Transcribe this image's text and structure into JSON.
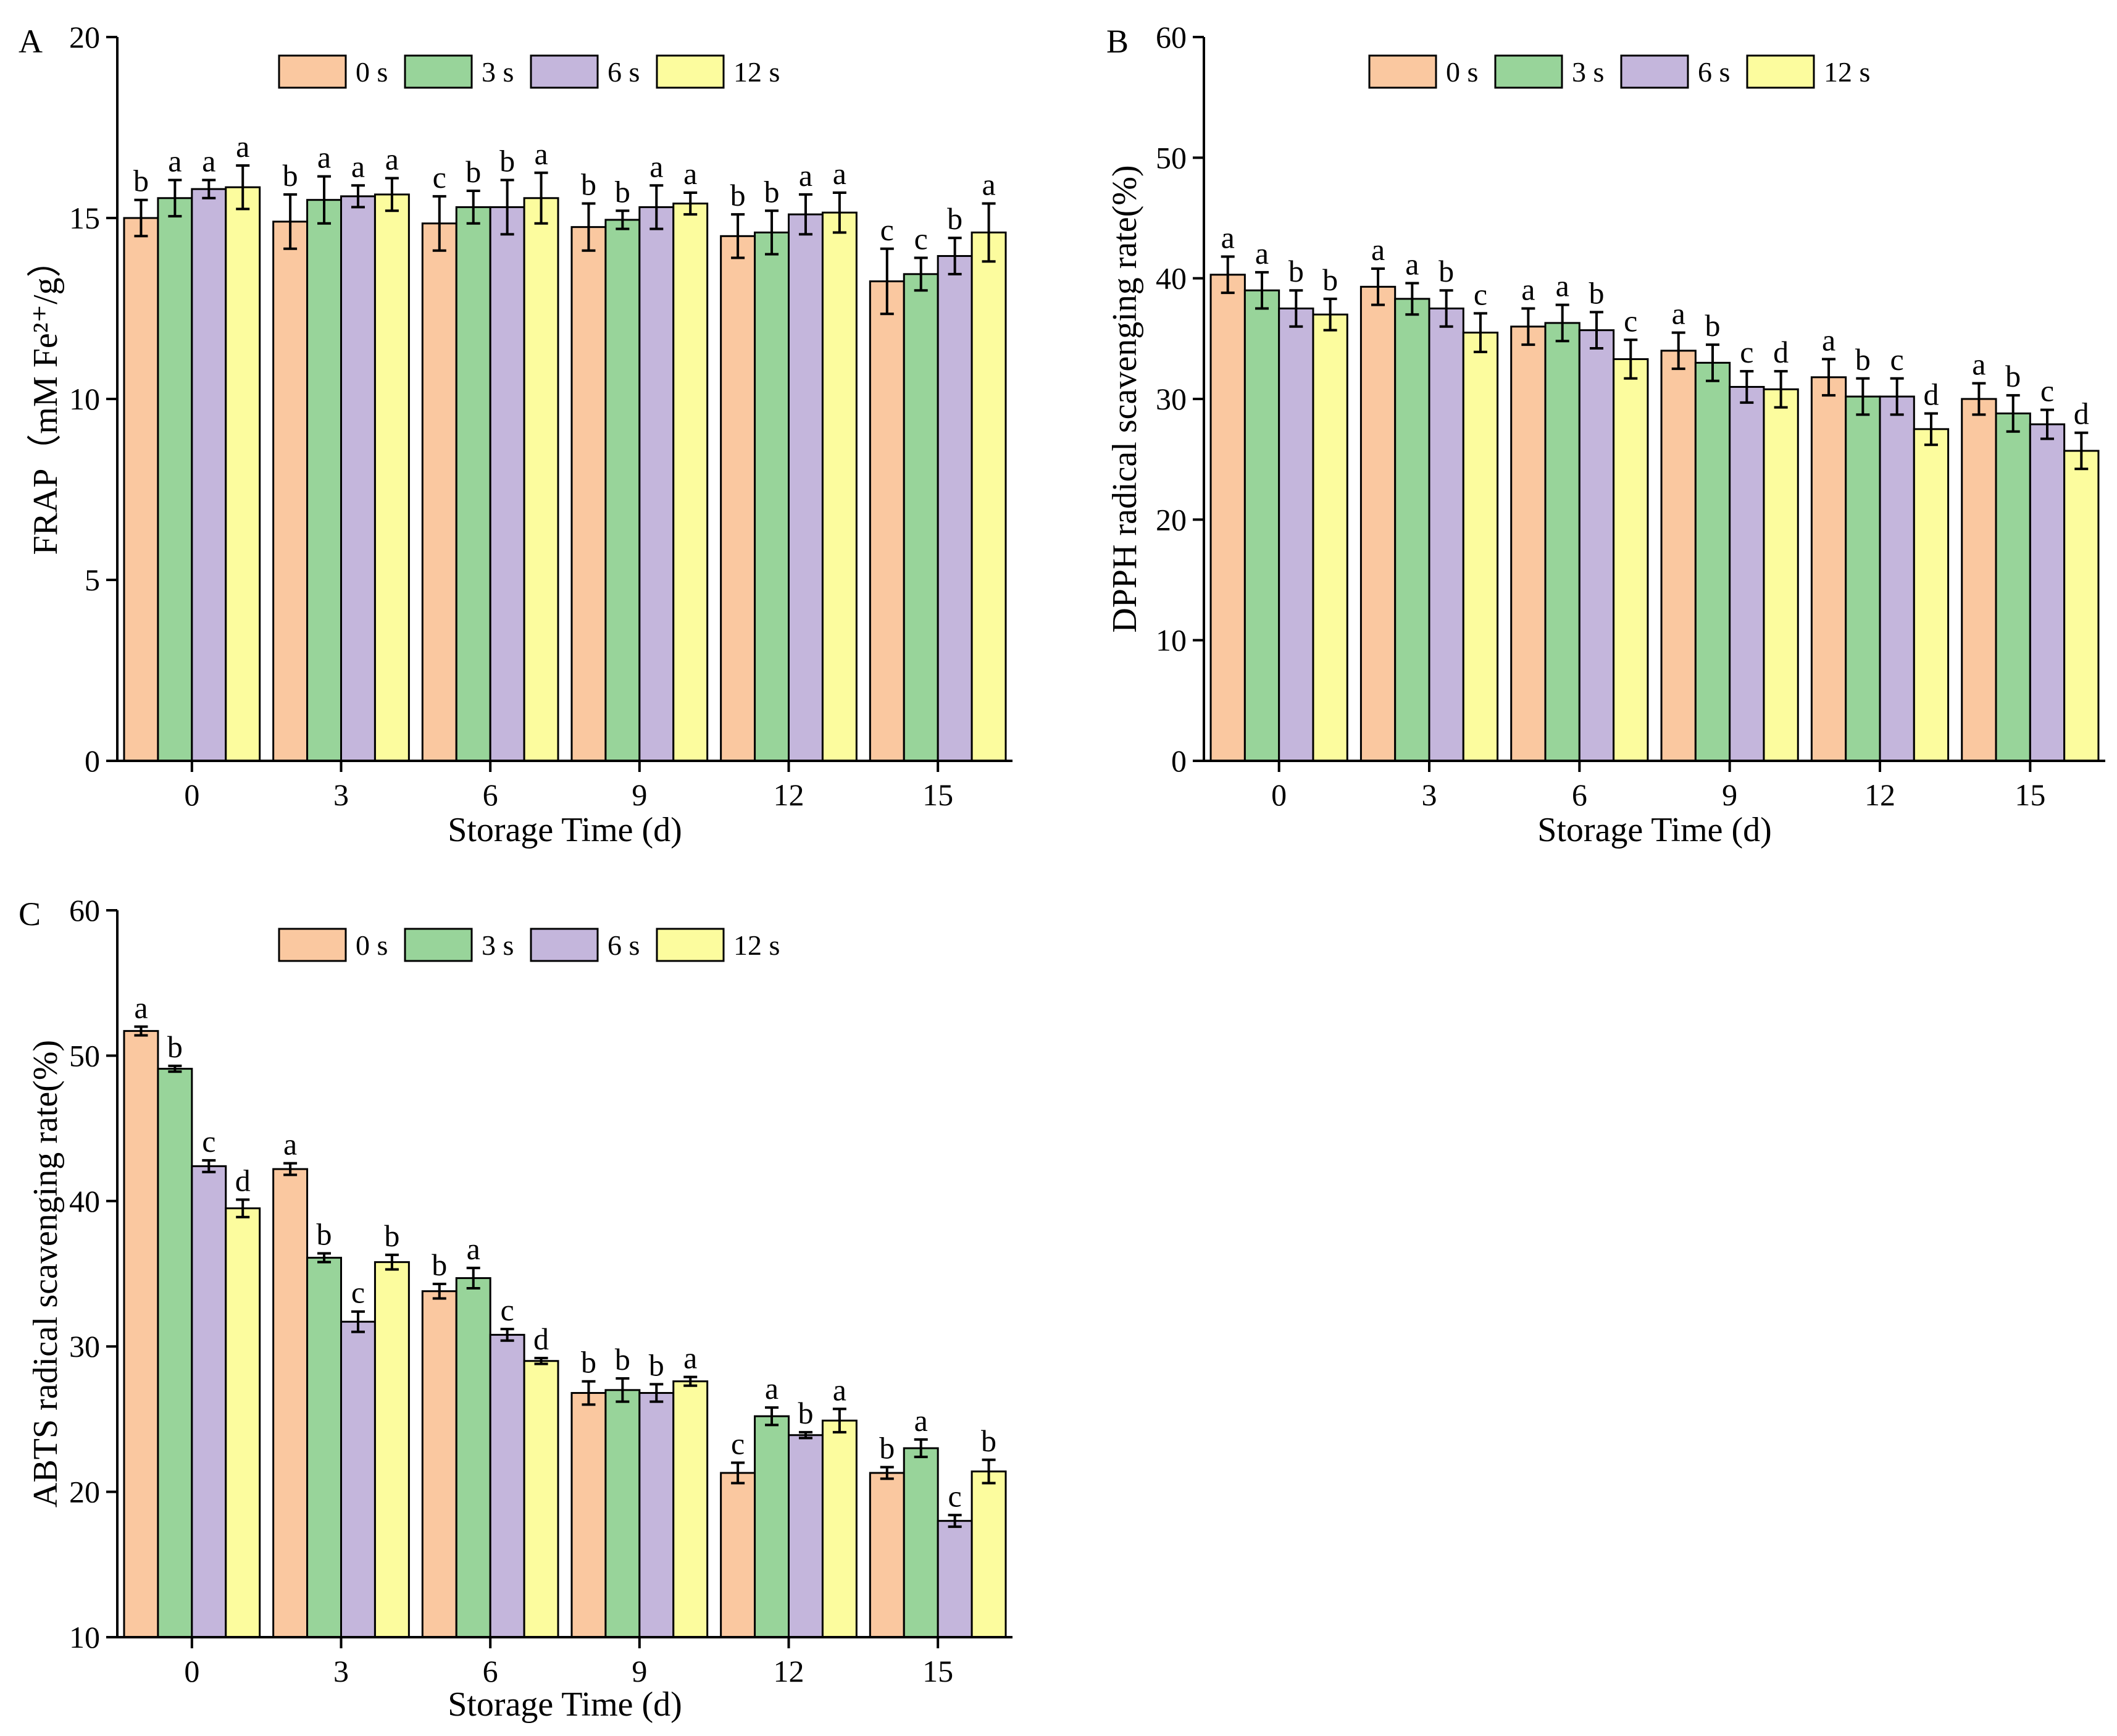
{
  "colors": {
    "s0": "#FAC8A0",
    "s3": "#98D49A",
    "s6": "#C4B6DC",
    "s12": "#FCFC9E"
  },
  "chart_data": [
    {
      "type": "bar",
      "panel": "A",
      "xlabel": "Storage Time (d)",
      "ylabel": "FRAP（mM Fe²⁺/g）",
      "ylim": [
        0,
        20
      ],
      "yticks": [
        0,
        5,
        10,
        15,
        20
      ],
      "legend": "top-center",
      "categories": [
        "0",
        "3",
        "6",
        "9",
        "12",
        "15"
      ],
      "series": [
        {
          "name": "0 s",
          "values": [
            15.0,
            14.9,
            14.85,
            14.75,
            14.5,
            13.25
          ],
          "errors": [
            0.5,
            0.75,
            0.75,
            0.65,
            0.6,
            0.9
          ],
          "letters": [
            "b",
            "b",
            "c",
            "b",
            "b",
            "c"
          ]
        },
        {
          "name": "3 s",
          "values": [
            15.55,
            15.5,
            15.3,
            14.95,
            14.6,
            13.45
          ],
          "errors": [
            0.5,
            0.65,
            0.45,
            0.25,
            0.6,
            0.45
          ],
          "letters": [
            "a",
            "a",
            "b",
            "b",
            "b",
            "c"
          ]
        },
        {
          "name": "6 s",
          "values": [
            15.8,
            15.6,
            15.3,
            15.3,
            15.1,
            13.95
          ],
          "errors": [
            0.25,
            0.3,
            0.75,
            0.6,
            0.55,
            0.5
          ],
          "letters": [
            "a",
            "a",
            "b",
            "a",
            "a",
            "b"
          ]
        },
        {
          "name": "12 s",
          "values": [
            15.85,
            15.65,
            15.55,
            15.4,
            15.15,
            14.6
          ],
          "errors": [
            0.6,
            0.45,
            0.7,
            0.3,
            0.55,
            0.8
          ],
          "letters": [
            "a",
            "a",
            "a",
            "a",
            "a",
            "a"
          ]
        }
      ]
    },
    {
      "type": "bar",
      "panel": "B",
      "xlabel": "Storage Time (d)",
      "ylabel": "DPPH radical scavenging rate(%)",
      "ylim": [
        0,
        60
      ],
      "yticks": [
        0,
        10,
        20,
        30,
        40,
        50,
        60
      ],
      "legend": "top-center",
      "categories": [
        "0",
        "3",
        "6",
        "9",
        "12",
        "15"
      ],
      "series": [
        {
          "name": "0 s",
          "values": [
            40.3,
            39.3,
            36.0,
            34.0,
            31.8,
            30.0
          ],
          "errors": [
            1.5,
            1.5,
            1.5,
            1.5,
            1.5,
            1.3
          ],
          "letters": [
            "a",
            "a",
            "a",
            "a",
            "a",
            "a"
          ]
        },
        {
          "name": "3 s",
          "values": [
            39.0,
            38.3,
            36.3,
            33.0,
            30.2,
            28.8
          ],
          "errors": [
            1.5,
            1.3,
            1.5,
            1.5,
            1.5,
            1.5
          ],
          "letters": [
            "a",
            "a",
            "a",
            "b",
            "b",
            "b"
          ]
        },
        {
          "name": "6 s",
          "values": [
            37.5,
            37.5,
            35.7,
            31.0,
            30.2,
            27.9
          ],
          "errors": [
            1.5,
            1.5,
            1.5,
            1.3,
            1.5,
            1.2
          ],
          "letters": [
            "b",
            "b",
            "b",
            "c",
            "c",
            "c"
          ]
        },
        {
          "name": "12 s",
          "values": [
            37.0,
            35.5,
            33.3,
            30.8,
            27.5,
            25.7
          ],
          "errors": [
            1.3,
            1.6,
            1.6,
            1.5,
            1.3,
            1.5
          ],
          "letters": [
            "b",
            "c",
            "c",
            "d",
            "d",
            "d"
          ]
        }
      ]
    },
    {
      "type": "bar",
      "panel": "C",
      "xlabel": "Storage Time (d)",
      "ylabel": "ABTS radical scavenging rate(%)",
      "ylim": [
        10,
        60
      ],
      "yticks": [
        10,
        20,
        30,
        40,
        50,
        60
      ],
      "legend": "top-center",
      "categories": [
        "0",
        "3",
        "6",
        "9",
        "12",
        "15"
      ],
      "series": [
        {
          "name": "0 s",
          "values": [
            51.7,
            42.2,
            33.8,
            26.8,
            21.3,
            21.3
          ],
          "errors": [
            0.3,
            0.4,
            0.5,
            0.8,
            0.7,
            0.4
          ],
          "letters": [
            "a",
            "a",
            "b",
            "b",
            "c",
            "b"
          ]
        },
        {
          "name": "3 s",
          "values": [
            49.1,
            36.1,
            34.7,
            27.0,
            25.2,
            23.0
          ],
          "errors": [
            0.2,
            0.3,
            0.7,
            0.8,
            0.6,
            0.6
          ],
          "letters": [
            "b",
            "b",
            "a",
            "b",
            "a",
            "a"
          ]
        },
        {
          "name": "6 s",
          "values": [
            42.4,
            31.7,
            30.8,
            26.8,
            23.9,
            18.0
          ],
          "errors": [
            0.4,
            0.7,
            0.4,
            0.6,
            0.2,
            0.4
          ],
          "letters": [
            "c",
            "c",
            "c",
            "b",
            "b",
            "c"
          ]
        },
        {
          "name": "12 s",
          "values": [
            39.5,
            35.8,
            29.0,
            27.6,
            24.9,
            21.4
          ],
          "errors": [
            0.6,
            0.5,
            0.2,
            0.3,
            0.8,
            0.8
          ],
          "letters": [
            "d",
            "b",
            "d",
            "a",
            "a",
            "b"
          ]
        }
      ]
    }
  ]
}
